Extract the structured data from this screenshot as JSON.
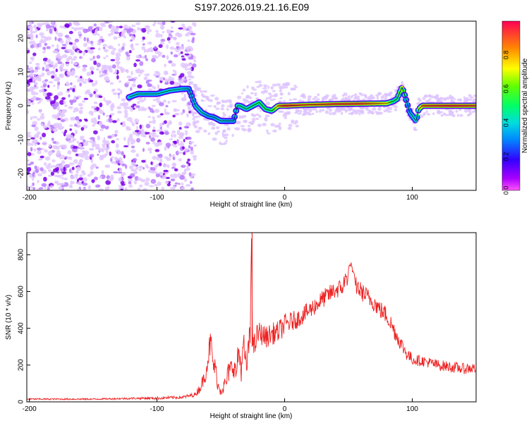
{
  "title": "S197.2026.019.21.16.E09",
  "colors": {
    "snr_line": "#ee2222",
    "ridge": "#111111",
    "blob_base": "#7a00e6"
  },
  "chart_data": [
    {
      "type": "heatmap",
      "title": "S197.2026.019.21.16.E09",
      "xlabel": "Height of straight line (km)",
      "ylabel": "Frequency (Hz)",
      "xlim": [
        -202,
        150
      ],
      "ylim": [
        -25,
        25
      ],
      "xticks": [
        -200,
        -100,
        0,
        100
      ],
      "xtick_labels": [
        "-200",
        "-100",
        "0",
        "100"
      ],
      "yticks": [
        -20,
        -10,
        0,
        10,
        20
      ],
      "ytick_labels": [
        "-20",
        "-10",
        "0",
        "10",
        "20"
      ],
      "colorbar": {
        "label": "Normalized spectral amplitude",
        "range": [
          0,
          1
        ],
        "ticks": [
          0.0,
          0.2,
          0.4,
          0.6,
          0.8
        ],
        "tick_labels": [
          "0.0",
          "0.2",
          "0.4",
          "0.6",
          "0.8"
        ]
      },
      "ridge": {
        "x": [
          -122,
          -115,
          -100,
          -90,
          -80,
          -75,
          -70,
          -65,
          -60,
          -55,
          -50,
          -45,
          -40,
          -37,
          -35,
          -30,
          -25,
          -20,
          -15,
          -10,
          -5,
          0,
          20,
          40,
          60,
          80,
          85,
          88,
          92,
          95,
          98,
          100,
          103,
          105,
          108,
          110,
          130,
          150
        ],
        "y": [
          2.5,
          3.5,
          3.5,
          4.5,
          5,
          5,
          0,
          -2,
          -3,
          -3.5,
          -4.5,
          -4.5,
          -4.5,
          0,
          0,
          -1,
          0,
          1,
          -1,
          -1.5,
          0,
          0,
          0.3,
          0.5,
          0.6,
          0.7,
          1.3,
          2,
          5.5,
          2,
          -2,
          -3,
          -4.5,
          -1,
          0,
          0,
          0,
          0
        ],
        "amplitude": [
          0.4,
          0.4,
          0.4,
          0.42,
          0.4,
          0.35,
          0.4,
          0.4,
          0.35,
          0.35,
          0.38,
          0.35,
          0.35,
          0.45,
          0.48,
          0.45,
          0.48,
          0.5,
          0.5,
          0.5,
          0.8,
          0.95,
          0.85,
          0.9,
          0.9,
          0.75,
          0.5,
          0.5,
          0.7,
          0.4,
          0.35,
          0.4,
          0.4,
          0.6,
          0.85,
          0.9,
          0.95,
          0.9
        ]
      },
      "scatter_region": {
        "x_range": [
          -202,
          -70
        ],
        "y_range": [
          -25,
          25
        ],
        "amplitude_range": [
          0.0,
          0.2
        ]
      }
    },
    {
      "type": "line",
      "xlabel": "Height of straight line (km)",
      "ylabel": "SNR (10 * v/v)",
      "xlim": [
        -202,
        150
      ],
      "ylim": [
        0,
        920
      ],
      "xticks": [
        -200,
        -100,
        0,
        100
      ],
      "xtick_labels": [
        "-200",
        "-100",
        "0",
        "100"
      ],
      "yticks": [
        0,
        200,
        400,
        600,
        800
      ],
      "ytick_labels": [
        "0",
        "200",
        "400",
        "600",
        "800"
      ],
      "series": [
        {
          "name": "SNR",
          "x": [
            -202,
            -150,
            -110,
            -100,
            -80,
            -70,
            -66,
            -62,
            -58,
            -56,
            -54,
            -52,
            -50,
            -48,
            -46,
            -44,
            -40,
            -38,
            -36,
            -34,
            -32,
            -30,
            -28,
            -27,
            -26,
            -25,
            -24,
            -22,
            -20,
            -15,
            -10,
            -5,
            0,
            10,
            20,
            30,
            40,
            45,
            50,
            52,
            55,
            60,
            65,
            70,
            75,
            80,
            85,
            90,
            95,
            100,
            110,
            120,
            130,
            140,
            150
          ],
          "y": [
            15,
            15,
            20,
            20,
            25,
            40,
            80,
            150,
            330,
            200,
            180,
            80,
            70,
            80,
            100,
            160,
            200,
            150,
            280,
            180,
            300,
            180,
            310,
            350,
            920,
            300,
            290,
            350,
            380,
            350,
            370,
            380,
            420,
            450,
            500,
            560,
            610,
            620,
            700,
            760,
            640,
            600,
            570,
            540,
            500,
            470,
            400,
            330,
            270,
            230,
            220,
            200,
            190,
            180,
            185
          ],
          "noise": [
            4,
            4,
            6,
            8,
            8,
            12,
            30,
            40,
            80,
            60,
            50,
            40,
            40,
            40,
            50,
            60,
            60,
            60,
            80,
            70,
            80,
            70,
            80,
            80,
            0,
            70,
            70,
            70,
            60,
            60,
            60,
            60,
            60,
            50,
            50,
            50,
            50,
            50,
            60,
            0,
            50,
            50,
            50,
            50,
            50,
            50,
            50,
            40,
            40,
            30,
            30,
            30,
            30,
            30,
            30
          ]
        }
      ]
    }
  ]
}
